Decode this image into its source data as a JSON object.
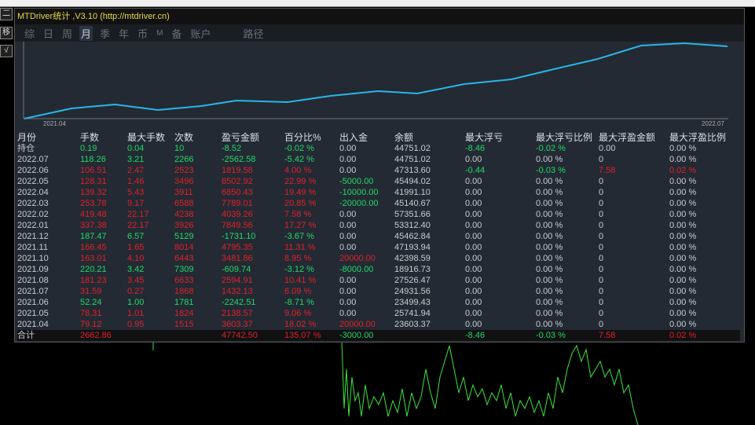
{
  "window": {
    "title": "MTDriver统计 ,V3.10 (http://mtdriver.cn)"
  },
  "left_toolbar": [
    "二",
    "移",
    "√"
  ],
  "tabs": [
    "综",
    "日",
    "周",
    "月",
    "季",
    "年",
    "币",
    "M",
    "备",
    "账户",
    "路径"
  ],
  "active_tab": "月",
  "chart": {
    "x_start": "2021.04",
    "x_end": "2022.07",
    "line_color": "#29b6e8"
  },
  "colors": {
    "profit": "#e0202a",
    "loss": "#22d868",
    "text": "#c8ccd2"
  },
  "table": {
    "headers": [
      "月份",
      "手数",
      "最大手数",
      "次数",
      "盈亏金额",
      "百分比%",
      "出入金",
      "余额",
      "最大浮亏",
      "最大浮亏比例",
      "最大浮盈金额",
      "最大浮盈比例"
    ],
    "rows": [
      [
        "持仓",
        "0.19",
        "0.04",
        "10",
        "-8.52",
        "-0.02 %",
        "0.00",
        "44751.02",
        "-8.46",
        "-0.02 %",
        "0.00",
        "0.00 %"
      ],
      [
        "2022.07",
        "118.26",
        "3.21",
        "2266",
        "-2562.58",
        "-5.42 %",
        "0.00",
        "44751.02",
        "0.00",
        "0.00 %",
        "0",
        "0.00 %"
      ],
      [
        "2022.06",
        "106.51",
        "2.47",
        "2523",
        "1819.58",
        "4.00 %",
        "0.00",
        "47313.60",
        "-0.44",
        "-0.03 %",
        "7.58",
        "0.02 %"
      ],
      [
        "2022.05",
        "128.31",
        "1.46",
        "3496",
        "8502.92",
        "22.99 %",
        "-5000.00",
        "45494.02",
        "0.00",
        "0.00 %",
        "0",
        "0.00 %"
      ],
      [
        "2022.04",
        "139.32",
        "5.43",
        "3911",
        "6850.43",
        "19.49 %",
        "-10000.00",
        "41991.10",
        "0.00",
        "0.00 %",
        "0",
        "0.00 %"
      ],
      [
        "2022.03",
        "253.78",
        "9.17",
        "6588",
        "7789.01",
        "20.85 %",
        "-20000.00",
        "45140.67",
        "0.00",
        "0.00 %",
        "0",
        "0.00 %"
      ],
      [
        "2022.02",
        "419.48",
        "22.17",
        "4238",
        "4039.26",
        "7.58 %",
        "0.00",
        "57351.66",
        "0.00",
        "0.00 %",
        "0",
        "0.00 %"
      ],
      [
        "2022.01",
        "337.38",
        "22.17",
        "3926",
        "7849.56",
        "17.27 %",
        "0.00",
        "53312.40",
        "0.00",
        "0.00 %",
        "0",
        "0.00 %"
      ],
      [
        "2021.12",
        "187.47",
        "6.57",
        "5129",
        "-1731.10",
        "-3.67 %",
        "0.00",
        "45462.84",
        "0.00",
        "0.00 %",
        "0",
        "0.00 %"
      ],
      [
        "2021.11",
        "166.45",
        "1.65",
        "8014",
        "4795.35",
        "11.31 %",
        "0.00",
        "47193.94",
        "0.00",
        "0.00 %",
        "0",
        "0.00 %"
      ],
      [
        "2021.10",
        "163.01",
        "4.10",
        "6443",
        "3481.86",
        "8.95 %",
        "20000.00",
        "42398.59",
        "0.00",
        "0.00 %",
        "0",
        "0.00 %"
      ],
      [
        "2021.09",
        "220.21",
        "3.42",
        "7309",
        "-609.74",
        "-3.12 %",
        "-8000.00",
        "18916.73",
        "0.00",
        "0.00 %",
        "0",
        "0.00 %"
      ],
      [
        "2021.08",
        "181.23",
        "3.45",
        "6633",
        "2594.91",
        "10.41 %",
        "0.00",
        "27526.47",
        "0.00",
        "0.00 %",
        "0",
        "0.00 %"
      ],
      [
        "2021.07",
        "31.59",
        "0.27",
        "1868",
        "1432.13",
        "6.09 %",
        "0.00",
        "24931.56",
        "0.00",
        "0.00 %",
        "0",
        "0.00 %"
      ],
      [
        "2021.06",
        "52.24",
        "1.00",
        "1781",
        "-2242.51",
        "-8.71 %",
        "0.00",
        "23499.43",
        "0.00",
        "0.00 %",
        "0",
        "0.00 %"
      ],
      [
        "2021.05",
        "78.31",
        "1.01",
        "1824",
        "2138.57",
        "9.06 %",
        "0.00",
        "25741.94",
        "0.00",
        "0.00 %",
        "0",
        "0.00 %"
      ],
      [
        "2021.04",
        "79.12",
        "0.95",
        "1515",
        "3603.37",
        "18.02 %",
        "20000.00",
        "23603.37",
        "0.00",
        "0.00 %",
        "0",
        "0.00 %"
      ]
    ],
    "total": [
      "合计",
      "2662.86",
      "",
      "",
      "47742.50",
      "135.07 %",
      "-3000.00",
      "",
      "-8.46",
      "-0.03 %",
      "7.58",
      "0.02 %"
    ]
  }
}
